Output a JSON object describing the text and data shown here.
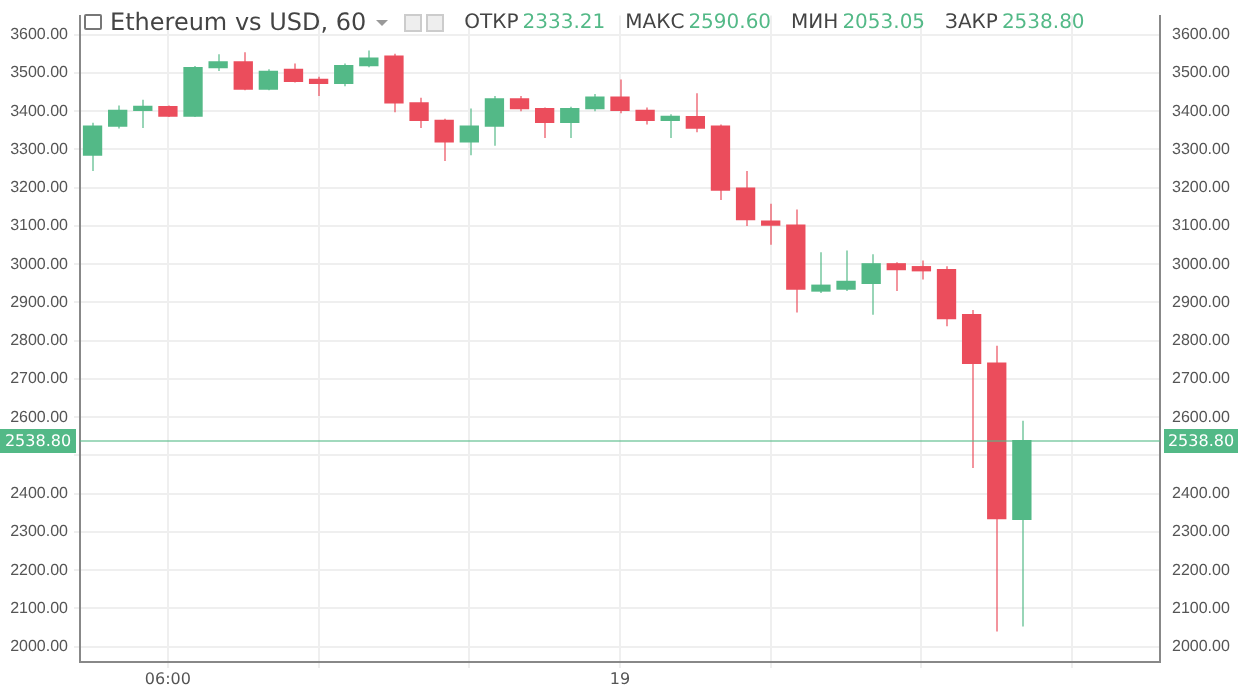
{
  "chart_data": {
    "type": "candlestick",
    "title": "Ethereum vs USD, 60",
    "annotations": [
      "ОТКР 2333.21",
      "МАКС 2590.60",
      "МИН 2053.05",
      "ЗАКР 2538.80"
    ],
    "categories": [
      null,
      null,
      null,
      "06:00",
      null,
      null,
      null,
      null,
      null,
      null,
      null,
      null,
      null,
      null,
      null,
      null,
      null,
      null,
      null,
      null,
      null,
      "19",
      null,
      null,
      null,
      null,
      null,
      null,
      null,
      null,
      null,
      null,
      null,
      null,
      null,
      null,
      null,
      null,
      null,
      null,
      null,
      null,
      null
    ],
    "ohlc": [
      [
        3285,
        3370,
        3244,
        3361
      ],
      [
        3361,
        3415,
        3355,
        3402
      ],
      [
        3402,
        3430,
        3356,
        3412
      ],
      [
        3412,
        3415,
        3385,
        3387
      ],
      [
        3387,
        3518,
        3385,
        3514
      ],
      [
        3514,
        3549,
        3505,
        3529
      ],
      [
        3529,
        3554,
        3455,
        3458
      ],
      [
        3458,
        3510,
        3455,
        3504
      ],
      [
        3509,
        3525,
        3475,
        3478
      ],
      [
        3483,
        3490,
        3440,
        3473
      ],
      [
        3473,
        3525,
        3465,
        3519
      ],
      [
        3519,
        3559,
        3515,
        3539
      ],
      [
        3544,
        3550,
        3397,
        3422
      ],
      [
        3422,
        3435,
        3356,
        3376
      ],
      [
        3376,
        3380,
        3270,
        3320
      ],
      [
        3320,
        3407,
        3285,
        3361
      ],
      [
        3361,
        3440,
        3310,
        3432
      ],
      [
        3432,
        3440,
        3400,
        3407
      ],
      [
        3407,
        3410,
        3330,
        3371
      ],
      [
        3371,
        3412,
        3330,
        3407
      ],
      [
        3407,
        3445,
        3400,
        3437
      ],
      [
        3437,
        3483,
        3395,
        3402
      ],
      [
        3402,
        3410,
        3365,
        3376
      ],
      [
        3376,
        3392,
        3330,
        3386
      ],
      [
        3386,
        3447,
        3345,
        3356
      ],
      [
        3361,
        3365,
        3168,
        3194
      ],
      [
        3199,
        3244,
        3100,
        3117
      ],
      [
        3112,
        3158,
        3051,
        3102
      ],
      [
        3102,
        3143,
        2874,
        2935
      ],
      [
        2930,
        3031,
        2925,
        2945
      ],
      [
        2935,
        3036,
        2930,
        2955
      ],
      [
        2950,
        3026,
        2868,
        3001
      ],
      [
        3001,
        3005,
        2930,
        2986
      ],
      [
        2991,
        3010,
        2960,
        2983
      ],
      [
        2986,
        2995,
        2838,
        2858
      ],
      [
        2868,
        2880,
        2467,
        2741
      ],
      [
        2741,
        2787,
        2040,
        2335
      ],
      [
        2333.21,
        2590.6,
        2053.05,
        2538.8
      ],
      null,
      null,
      null,
      null,
      null
    ],
    "colors": [
      "#53b987",
      "#53b987",
      "#53b987",
      "#eb4d5c",
      "#53b987",
      "#53b987",
      "#eb4d5c",
      "#53b987",
      "#eb4d5c",
      "#eb4d5c",
      "#53b987",
      "#53b987",
      "#eb4d5c",
      "#eb4d5c",
      "#eb4d5c",
      "#53b987",
      "#53b987",
      "#eb4d5c",
      "#eb4d5c",
      "#53b987",
      "#53b987",
      "#eb4d5c",
      "#eb4d5c",
      "#53b987",
      "#eb4d5c",
      "#eb4d5c",
      "#eb4d5c",
      "#eb4d5c",
      "#eb4d5c",
      "#53b987",
      "#53b987",
      "#53b987",
      "#eb4d5c",
      "#eb4d5c",
      "#eb4d5c",
      "#eb4d5c",
      "#eb4d5c",
      "#53b987",
      null,
      null,
      null,
      null,
      null
    ],
    "ylim": [
      1960,
      3650
    ],
    "yticks": [
      {
        "value": 2000,
        "label": "2000.00"
      },
      {
        "value": 2100,
        "label": "2100.00"
      },
      {
        "value": 2200,
        "label": "2200.00"
      },
      {
        "value": 2300,
        "label": "2300.00"
      },
      {
        "value": 2400,
        "label": "2400.00"
      },
      {
        "value": 2500,
        "label": null
      },
      {
        "value": 2600,
        "label": "2600.00"
      },
      {
        "value": 2700,
        "label": "2700.00"
      },
      {
        "value": 2800,
        "label": "2800.00"
      },
      {
        "value": 2900,
        "label": "2900.00"
      },
      {
        "value": 3000,
        "label": "3000.00"
      },
      {
        "value": 3100,
        "label": "3100.00"
      },
      {
        "value": 3200,
        "label": "3200.00"
      },
      {
        "value": 3300,
        "label": "3300.00"
      },
      {
        "value": 3400,
        "label": "3400.00"
      },
      {
        "value": 3500,
        "label": "3500.00"
      },
      {
        "value": 3600,
        "label": "3600.00"
      }
    ],
    "y2lim": [
      1960,
      3650
    ],
    "y2ticks": [
      {
        "value": 2000,
        "label": "2000.00"
      },
      {
        "value": 2100,
        "label": "2100.00"
      },
      {
        "value": 2200,
        "label": "2200.00"
      },
      {
        "value": 2300,
        "label": "2300.00"
      },
      {
        "value": 2400,
        "label": "2400.00"
      },
      {
        "value": 2500,
        "label": null
      },
      {
        "value": 2600,
        "label": "2600.00"
      },
      {
        "value": 2700,
        "label": "2700.00"
      },
      {
        "value": 2800,
        "label": "2800.00"
      },
      {
        "value": 2900,
        "label": "2900.00"
      },
      {
        "value": 3000,
        "label": "3000.00"
      },
      {
        "value": 3100,
        "label": "3100.00"
      },
      {
        "value": 3200,
        "label": "3200.00"
      },
      {
        "value": 3300,
        "label": "3300.00"
      },
      {
        "value": 3400,
        "label": "3400.00"
      },
      {
        "value": 3500,
        "label": "3500.00"
      },
      {
        "value": 3600,
        "label": "3600.00"
      }
    ],
    "ref_lines": [
      {
        "axis": "y",
        "value": 2538.8,
        "label": "2538.80",
        "color": "#53b987"
      }
    ],
    "grid": true
  }
}
